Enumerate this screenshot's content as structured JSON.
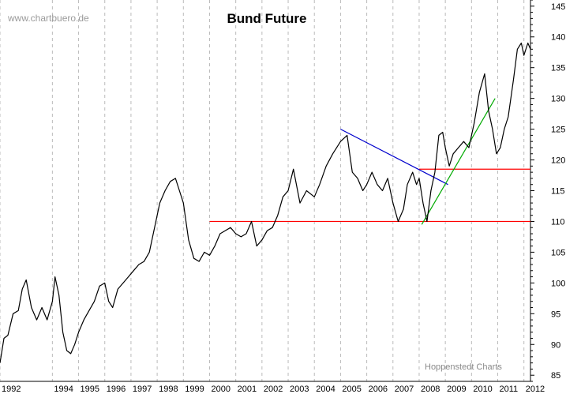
{
  "chart_data": {
    "type": "line",
    "title": "Bund Future",
    "watermark": "www.chartbuero.de",
    "credit": "Hoppenstedt Charts",
    "xlim": [
      1992.0,
      2012.25
    ],
    "ylim": [
      84,
      146
    ],
    "x_tick_labels": [
      "1992",
      "1994",
      "1995",
      "1996",
      "1997",
      "1998",
      "1999",
      "2000",
      "2001",
      "2002",
      "2003",
      "2004",
      "2005",
      "2006",
      "2007",
      "2008",
      "2009",
      "2010",
      "2011",
      "2012"
    ],
    "x_tick_values": [
      1992,
      1994,
      1995,
      1996,
      1997,
      1998,
      1999,
      2000,
      2001,
      2002,
      2003,
      2004,
      2005,
      2006,
      2007,
      2008,
      2009,
      2010,
      2011,
      2012
    ],
    "y_ticks": [
      85,
      90,
      95,
      100,
      105,
      110,
      115,
      120,
      125,
      130,
      135,
      140,
      145
    ],
    "grid": "vertical dashed",
    "y_axis_position": "right",
    "colors": {
      "price": "#000000",
      "support": "#ff0000",
      "downtrend": "#0000cc",
      "uptrend": "#00aa00",
      "grid": "#bbbbbb"
    },
    "series": [
      {
        "x": [
          1992.0,
          1992.15,
          1992.3,
          1992.5,
          1992.7,
          1992.85,
          1993.0,
          1993.2,
          1993.4,
          1993.6,
          1993.8,
          1994.0,
          1994.1,
          1994.25,
          1994.4,
          1994.55,
          1994.7,
          1994.85,
          1995.0,
          1995.2,
          1995.4,
          1995.6,
          1995.8,
          1996.0,
          1996.15,
          1996.3,
          1996.5,
          1996.7,
          1996.9,
          1997.1,
          1997.3,
          1997.5,
          1997.7,
          1997.9,
          1998.1,
          1998.3,
          1998.5,
          1998.7,
          1998.85,
          1999.0,
          1999.2,
          1999.4,
          1999.6,
          1999.8,
          2000.0,
          2000.2,
          2000.4,
          2000.6,
          2000.8,
          2001.0,
          2001.2,
          2001.4,
          2001.6,
          2001.8,
          2002.0,
          2002.2,
          2002.4,
          2002.6,
          2002.8,
          2003.0,
          2003.2,
          2003.45,
          2003.7,
          2004.0,
          2004.2,
          2004.45,
          2004.7,
          2005.0,
          2005.25,
          2005.45,
          2005.65,
          2005.85,
          2006.0,
          2006.2,
          2006.4,
          2006.6,
          2006.8,
          2007.0,
          2007.2,
          2007.4,
          2007.55,
          2007.75,
          2007.9,
          2008.0,
          2008.15,
          2008.3,
          2008.45,
          2008.6,
          2008.75,
          2008.9,
          2009.0,
          2009.15,
          2009.3,
          2009.5,
          2009.7,
          2009.9,
          2010.1,
          2010.3,
          2010.5,
          2010.65,
          2010.8,
          2010.95,
          2011.1,
          2011.25,
          2011.4,
          2011.6,
          2011.75,
          2011.9,
          2012.0,
          2012.15,
          2012.25
        ],
        "y": [
          87,
          91,
          91.5,
          95,
          95.5,
          99,
          100.5,
          96,
          94,
          96,
          94,
          97,
          101,
          98,
          92,
          89,
          88.5,
          90,
          92,
          94,
          95.5,
          97,
          99.5,
          100,
          97,
          96,
          99,
          100,
          101,
          102,
          103,
          103.5,
          105,
          109,
          113,
          115,
          116.5,
          117,
          115,
          113,
          107,
          104,
          103.5,
          105,
          104.5,
          106,
          108,
          108.5,
          109,
          108,
          107.5,
          108,
          110,
          106,
          107,
          108.5,
          109,
          111,
          114,
          115,
          118.5,
          113,
          115,
          114,
          116,
          119,
          121,
          123,
          124,
          118,
          117,
          115,
          116,
          118,
          116,
          115,
          117,
          113,
          110,
          112,
          116,
          118,
          116,
          117,
          113,
          110,
          115,
          118,
          124,
          124.5,
          122,
          119,
          121,
          122,
          123,
          122,
          126,
          131,
          134,
          128,
          125,
          121,
          122,
          125,
          127,
          133,
          138,
          139,
          137,
          139,
          138
        ]
      }
    ],
    "lines": [
      {
        "name": "support-110",
        "x": [
          2000.0,
          2012.25
        ],
        "y": [
          110,
          110
        ],
        "color": "#ff0000"
      },
      {
        "name": "support-118-5",
        "x": [
          2008.0,
          2012.25
        ],
        "y": [
          118.5,
          118.5
        ],
        "color": "#ff0000"
      },
      {
        "name": "downtrend",
        "x": [
          2005.0,
          2009.1
        ],
        "y": [
          125,
          116
        ],
        "color": "#0000cc"
      },
      {
        "name": "uptrend",
        "x": [
          2008.1,
          2010.9
        ],
        "y": [
          109.5,
          130
        ],
        "color": "#00aa00"
      }
    ]
  }
}
